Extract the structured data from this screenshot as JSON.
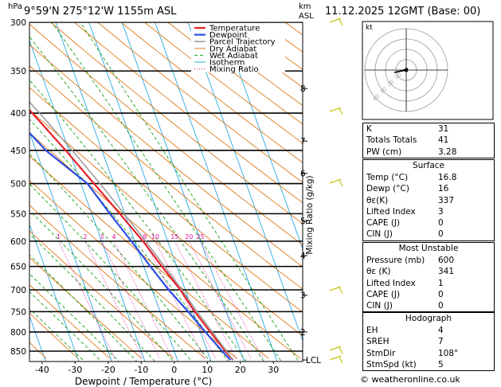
{
  "header": {
    "location": "9°59'N  275°12'W  1155m  ASL",
    "datetime": "11.12.2025  12GMT  (Base: 00)",
    "hpa_label": "hPa",
    "km_label": "km",
    "asl_label": "ASL"
  },
  "chart_data": {
    "type": "line",
    "subtype": "skew-T log-P",
    "xlabel": "Dewpoint / Temperature (°C)",
    "ylabel_right": "Mixing Ratio (g/kg)",
    "x_ticks": [
      -40,
      -30,
      -20,
      -10,
      0,
      10,
      20,
      30
    ],
    "pressure_levels": [
      300,
      350,
      400,
      450,
      500,
      550,
      600,
      650,
      700,
      750,
      800,
      850
    ],
    "km_ticks": [
      {
        "label": "8",
        "p": 370
      },
      {
        "label": "7",
        "p": 437
      },
      {
        "label": "6",
        "p": 484
      },
      {
        "label": "5",
        "p": 563
      },
      {
        "label": "4",
        "p": 628
      },
      {
        "label": "3",
        "p": 712
      },
      {
        "label": "2",
        "p": 800
      },
      {
        "label": "LCL",
        "p": 874
      }
    ],
    "mixing_ratio_labels": [
      "1",
      "2",
      "3",
      "4",
      "8",
      "10",
      "15",
      "20",
      "25"
    ],
    "legend": [
      "Temperature",
      "Dewpoint",
      "Parcel Trajectory",
      "Dry Adiabat",
      "Wet Adiabat",
      "Isotherm",
      "Mixing Ratio"
    ],
    "series": [
      {
        "name": "Temperature",
        "color": "#e8202a",
        "points": [
          [
            874,
            16.8
          ],
          [
            850,
            15.5
          ],
          [
            800,
            13.0
          ],
          [
            750,
            10.5
          ],
          [
            700,
            8.5
          ],
          [
            650,
            5.5
          ],
          [
            600,
            2.5
          ],
          [
            550,
            -1.5
          ],
          [
            500,
            -6.0
          ],
          [
            450,
            -11.0
          ],
          [
            400,
            -17.0
          ],
          [
            350,
            -24.5
          ],
          [
            300,
            -33.0
          ]
        ]
      },
      {
        "name": "Dewpoint",
        "color": "#2a4ee8",
        "points": [
          [
            874,
            16.0
          ],
          [
            850,
            14.5
          ],
          [
            800,
            11.5
          ],
          [
            750,
            8.5
          ],
          [
            700,
            5.0
          ],
          [
            650,
            2.0
          ],
          [
            600,
            -1.0
          ],
          [
            550,
            -4.5
          ],
          [
            500,
            -8.0
          ],
          [
            450,
            -17.0
          ],
          [
            400,
            -23.5
          ],
          [
            350,
            -47.0
          ],
          [
            300,
            -55.0
          ]
        ]
      },
      {
        "name": "Parcel Trajectory",
        "color": "#999999",
        "points": [
          [
            874,
            16.8
          ],
          [
            850,
            15.8
          ],
          [
            800,
            13.6
          ],
          [
            750,
            11.2
          ],
          [
            700,
            9.0
          ],
          [
            650,
            6.3
          ],
          [
            600,
            3.3
          ],
          [
            550,
            -0.2
          ],
          [
            500,
            -4.2
          ],
          [
            450,
            -9.0
          ],
          [
            400,
            -14.8
          ],
          [
            350,
            -22.0
          ],
          [
            300,
            -31.0
          ]
        ]
      }
    ]
  },
  "hodograph": {
    "label": "kt",
    "ring_labels": [
      "10",
      "20",
      "30",
      "40"
    ]
  },
  "indices": {
    "top": [
      {
        "k": "K",
        "v": "31"
      },
      {
        "k": "Totals Totals",
        "v": "41"
      },
      {
        "k": "PW (cm)",
        "v": "3.28"
      }
    ],
    "surface": {
      "title": "Surface",
      "rows": [
        {
          "k": "Temp (°C)",
          "v": "16.8"
        },
        {
          "k": "Dewp (°C)",
          "v": "16"
        },
        {
          "k": "θε(K)",
          "v": "337"
        },
        {
          "k": "Lifted Index",
          "v": "3"
        },
        {
          "k": "CAPE (J)",
          "v": "0"
        },
        {
          "k": "CIN (J)",
          "v": "0"
        }
      ]
    },
    "most_unstable": {
      "title": "Most Unstable",
      "rows": [
        {
          "k": "Pressure (mb)",
          "v": "600"
        },
        {
          "k": "θε (K)",
          "v": "341"
        },
        {
          "k": "Lifted Index",
          "v": "1"
        },
        {
          "k": "CAPE (J)",
          "v": "0"
        },
        {
          "k": "CIN (J)",
          "v": "0"
        }
      ]
    },
    "hodograph": {
      "title": "Hodograph",
      "rows": [
        {
          "k": "EH",
          "v": "4"
        },
        {
          "k": "SREH",
          "v": "7"
        },
        {
          "k": "StmDir",
          "v": "108°"
        },
        {
          "k": "StmSpd (kt)",
          "v": "5"
        }
      ]
    }
  },
  "copyright": "© weatheronline.co.uk",
  "colors": {
    "temperature": "#e8202a",
    "dewpoint": "#2a4ee8",
    "parcel": "#999999",
    "dry_adiabat": "#e07a1a",
    "wet_adiabat": "#1aa01a",
    "isotherm": "#29a8e0",
    "mixing_ratio": "#e0109a",
    "wind_barb": "#c8c818"
  }
}
